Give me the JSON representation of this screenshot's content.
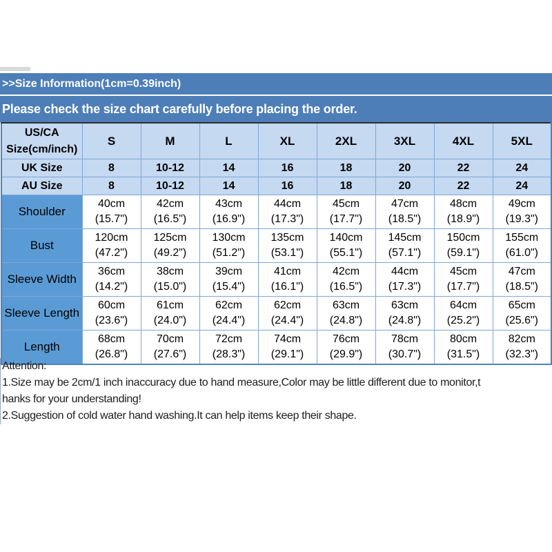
{
  "colors": {
    "banner_blue": "#4d7eb8",
    "header_light_blue": "#c5d9f1",
    "label_blue": "#5b9bd5",
    "cell_border": "#7da7d9",
    "table_outline": "#4f81bd",
    "table_top_line": "#2e2e38"
  },
  "banner": {
    "size_info": ">>Size Information(1cm=0.39inch)",
    "notice": "Please check the size chart carefully before placing the order."
  },
  "size_table": {
    "corner_label": "US/CA Size(cm/inch)",
    "size_headers": [
      "S",
      "M",
      "L",
      "XL",
      "2XL",
      "3XL",
      "4XL",
      "5XL"
    ],
    "region_size_rows": [
      {
        "label": "UK Size",
        "values": [
          "8",
          "10-12",
          "14",
          "16",
          "18",
          "20",
          "22",
          "24"
        ]
      },
      {
        "label": "AU Size",
        "values": [
          "8",
          "10-12",
          "14",
          "16",
          "18",
          "20",
          "22",
          "24"
        ]
      }
    ],
    "measurement_rows": [
      {
        "label": "Shoulder",
        "values_cm": [
          "40cm",
          "42cm",
          "43cm",
          "44cm",
          "45cm",
          "47cm",
          "48cm",
          "49cm"
        ],
        "values_inch": [
          "(15.7\")",
          "(16.5\")",
          "(16.9\")",
          "(17.3\")",
          "(17.7\")",
          "(18.5\")",
          "(18.9\")",
          "(19.3\")"
        ]
      },
      {
        "label": "Bust",
        "values_cm": [
          "120cm",
          "125cm",
          "130cm",
          "135cm",
          "140cm",
          "145cm",
          "150cm",
          "155cm"
        ],
        "values_inch": [
          "(47.2\")",
          "(49.2\")",
          "(51.2\")",
          "(53.1\")",
          "(55.1\")",
          "(57.1\")",
          "(59.1\")",
          "(61.0\")"
        ]
      },
      {
        "label": "Sleeve Width",
        "values_cm": [
          "36cm",
          "38cm",
          "39cm",
          "41cm",
          "42cm",
          "44cm",
          "45cm",
          "47cm"
        ],
        "values_inch": [
          "(14.2\")",
          "(15.0\")",
          "(15.4\")",
          "(16.1\")",
          "(16.5\")",
          "(17.3\")",
          "(17.7\")",
          "(18.5\")"
        ]
      },
      {
        "label": "Sleeve Length",
        "values_cm": [
          "60cm",
          "61cm",
          "62cm",
          "62cm",
          "63cm",
          "63cm",
          "64cm",
          "65cm"
        ],
        "values_inch": [
          "(23.6\")",
          "(24.0\")",
          "(24.4\")",
          "(24.4\")",
          "(24.8\")",
          "(24.8\")",
          "(25.2\")",
          "(25.6\")"
        ]
      },
      {
        "label": "Length",
        "values_cm": [
          "68cm",
          "70cm",
          "72cm",
          "74cm",
          "76cm",
          "78cm",
          "80cm",
          "82cm"
        ],
        "values_inch": [
          "(26.8\")",
          "(27.6\")",
          "(28.3\")",
          "(29.1\")",
          "(29.9\")",
          "(30.7\")",
          "(31.5\")",
          "(32.3\")"
        ]
      }
    ]
  },
  "attention": {
    "lines": [
      "Attention:",
      "1.Size may be 2cm/1 inch inaccuracy due to hand measure,Color may be little different due to monitor,t",
      "hanks for your understanding!",
      "2.Suggestion of cold water hand washing.It can help items keep their shape."
    ]
  }
}
